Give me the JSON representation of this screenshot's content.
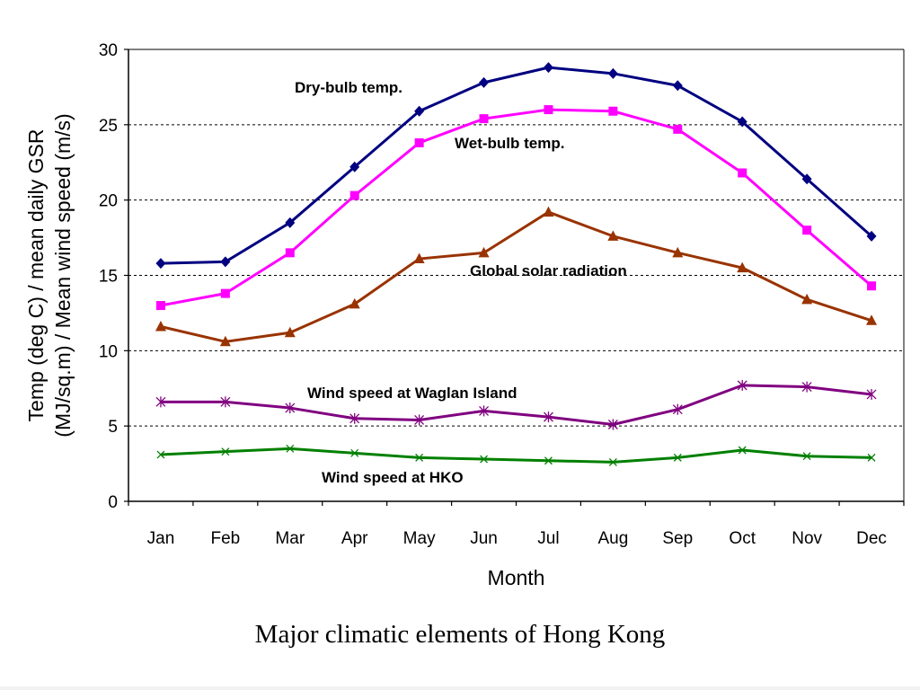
{
  "caption": "Major climatic elements of Hong Kong",
  "chart_data": {
    "type": "line",
    "title": "",
    "xlabel": "Month",
    "ylabel": "Temp (deg C) / mean daily GSR (MJ/sq.m) / Mean wind speed (m/s)",
    "ylabel_lines": [
      "Temp (deg C) / mean daily GSR",
      "(MJ/sq.m) / Mean wind speed (m/s)"
    ],
    "ylim": [
      0,
      30
    ],
    "yticks": [
      0,
      5,
      10,
      15,
      20,
      25,
      30
    ],
    "grid": "horizontal dashed",
    "legend": "none (series labelled inline)",
    "categories": [
      "Jan",
      "Feb",
      "Mar",
      "Apr",
      "May",
      "Jun",
      "Jul",
      "Aug",
      "Sep",
      "Oct",
      "Nov",
      "Dec"
    ],
    "series": [
      {
        "name": "Dry-bulb temp.",
        "color": "#000080",
        "marker": "diamond",
        "values": [
          15.8,
          15.9,
          18.5,
          22.2,
          25.9,
          27.8,
          28.8,
          28.4,
          27.6,
          25.2,
          21.4,
          17.6
        ]
      },
      {
        "name": "Wet-bulb temp.",
        "color": "#ff00ff",
        "marker": "square",
        "values": [
          13.0,
          13.8,
          16.5,
          20.3,
          23.8,
          25.4,
          26.0,
          25.9,
          24.7,
          21.8,
          18.0,
          14.3
        ]
      },
      {
        "name": "Global solar radiation",
        "color": "#993300",
        "marker": "triangle",
        "values": [
          11.6,
          10.6,
          11.2,
          13.1,
          16.1,
          16.5,
          19.2,
          17.6,
          16.5,
          15.5,
          13.4,
          12.0
        ]
      },
      {
        "name": "Wind speed at Waglan Island",
        "color": "#800080",
        "marker": "star",
        "values": [
          6.6,
          6.6,
          6.2,
          5.5,
          5.4,
          6.0,
          5.6,
          5.1,
          6.1,
          7.7,
          7.6,
          7.1
        ]
      },
      {
        "name": "Wind speed at HKO",
        "color": "#008000",
        "marker": "x",
        "values": [
          3.1,
          3.3,
          3.5,
          3.2,
          2.9,
          2.8,
          2.7,
          2.6,
          2.9,
          3.4,
          3.0,
          2.9
        ]
      }
    ]
  }
}
